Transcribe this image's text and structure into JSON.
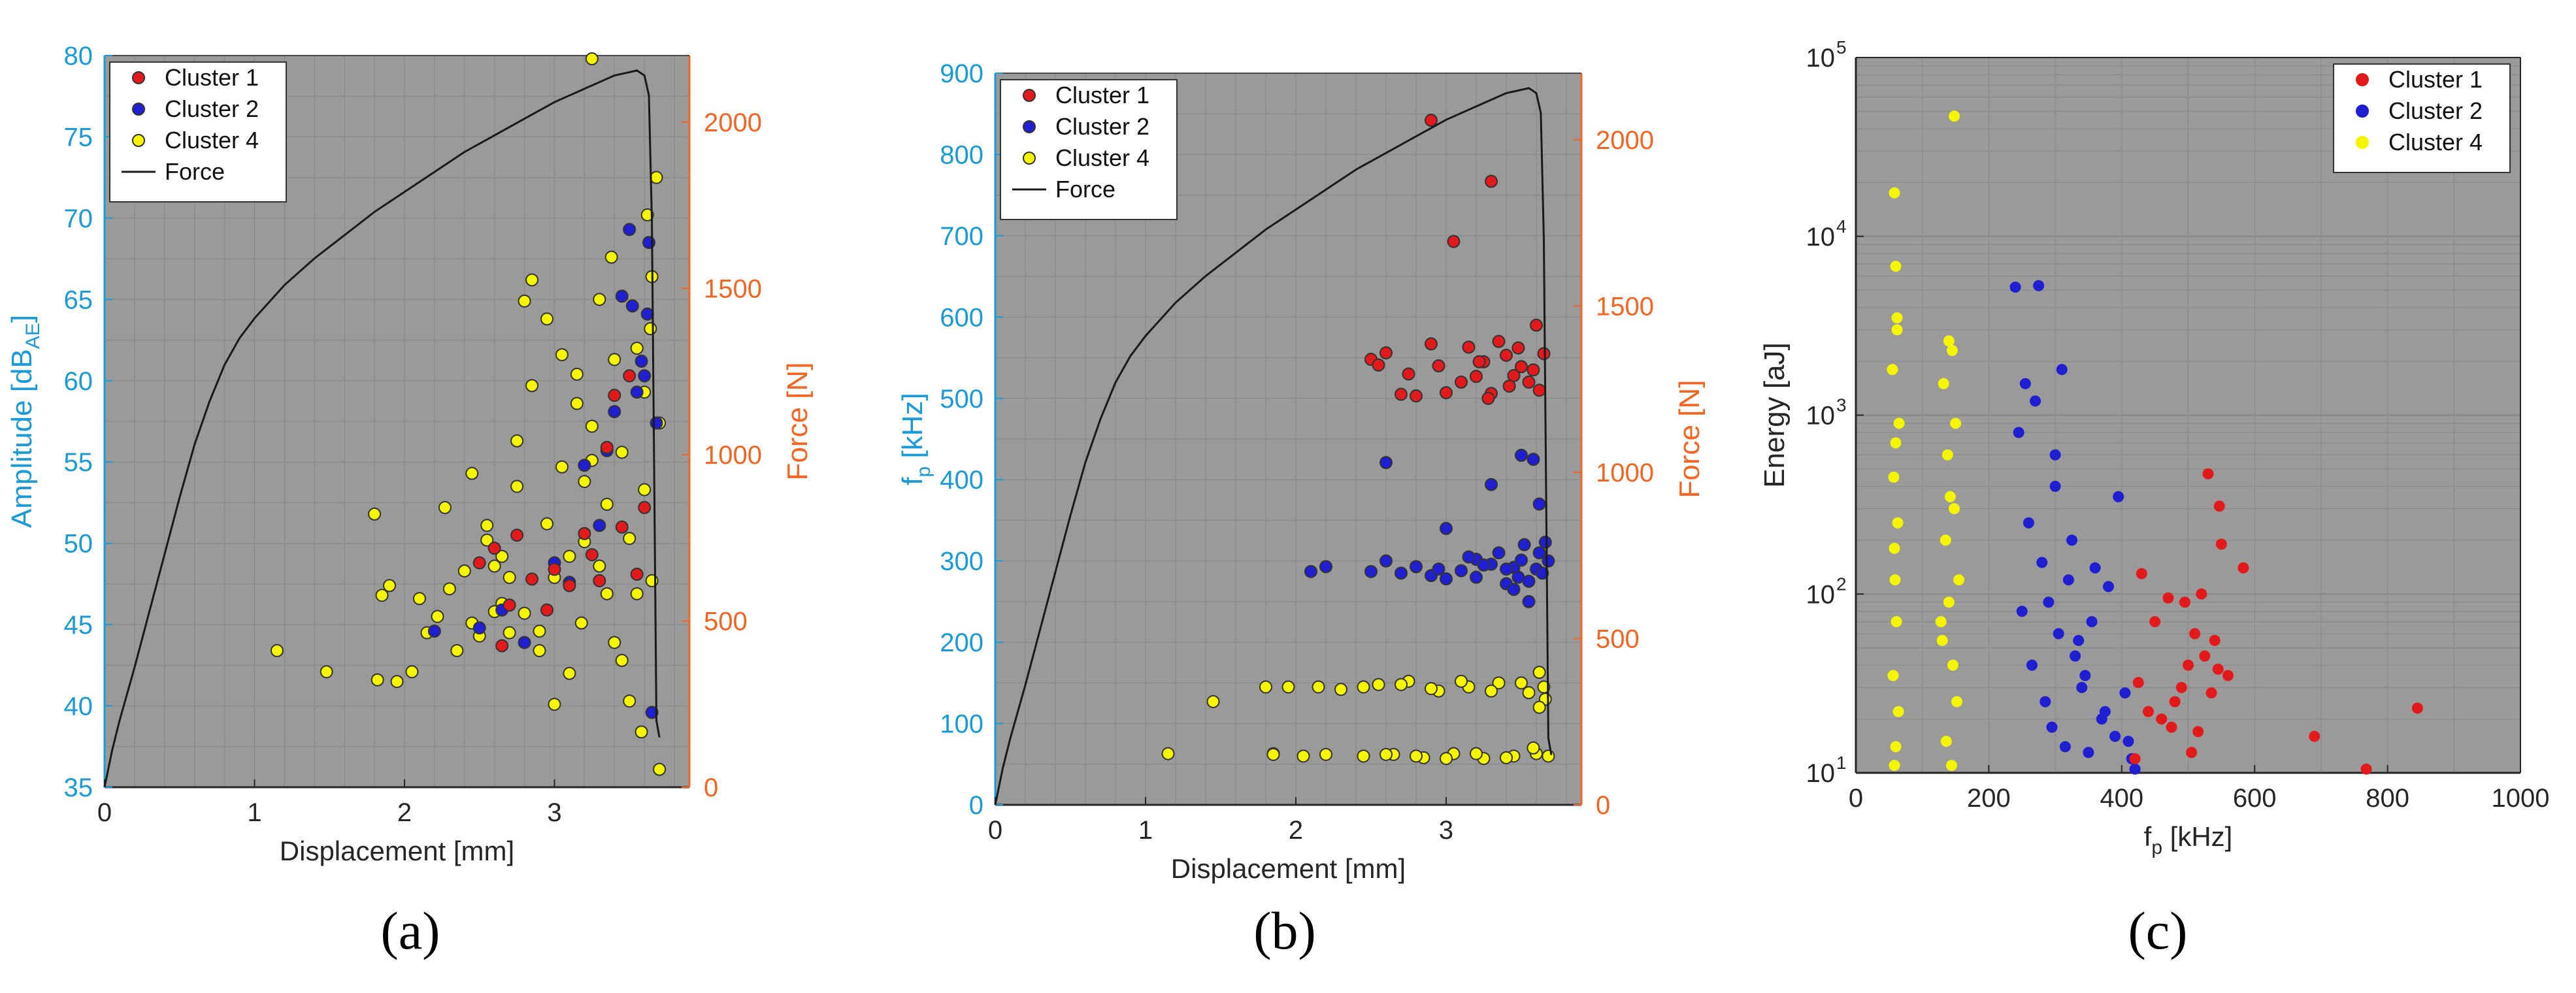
{
  "figure": {
    "labels": [
      "(a)",
      "(b)",
      "(c)"
    ]
  },
  "chart_data": [
    {
      "id": "a",
      "type": "scatter",
      "title": "",
      "xlabel": "Displacement [mm]",
      "ylabel": "Amplitude [dB_AE]",
      "ylabel_main": "Amplitude [dB",
      "ylabel_sub": "AE",
      "ylabel_end": "]",
      "y2label": "Force [N]",
      "xlim": [
        0,
        3.9
      ],
      "ylim": [
        35,
        80
      ],
      "y2lim": [
        0,
        2200
      ],
      "xticks": [
        "0",
        "1",
        "2",
        "3"
      ],
      "xtick_values": [
        0,
        1,
        2,
        3
      ],
      "yticks": [
        "35",
        "40",
        "45",
        "50",
        "55",
        "60",
        "65",
        "70",
        "75",
        "80"
      ],
      "ytick_values": [
        35,
        40,
        45,
        50,
        55,
        60,
        65,
        70,
        75,
        80
      ],
      "y2ticks": [
        "0",
        "500",
        "1000",
        "1500",
        "2000"
      ],
      "y2tick_values": [
        0,
        500,
        1000,
        1500,
        2000
      ],
      "grid": true,
      "legend_position": "top-left",
      "legend": [
        "Cluster 1",
        "Cluster 2",
        "Cluster 4",
        "Force"
      ],
      "force_curve": {
        "name": "Force",
        "x": [
          0,
          0.05,
          0.1,
          0.2,
          0.3,
          0.4,
          0.5,
          0.6,
          0.7,
          0.8,
          0.9,
          1.0,
          1.2,
          1.4,
          1.6,
          1.8,
          2.0,
          2.2,
          2.4,
          2.6,
          2.8,
          3.0,
          3.2,
          3.4,
          3.5,
          3.55,
          3.6,
          3.63,
          3.65,
          3.67,
          3.68,
          3.7
        ],
        "y": [
          0,
          110,
          200,
          360,
          530,
          700,
          870,
          1030,
          1160,
          1270,
          1350,
          1410,
          1510,
          1590,
          1660,
          1730,
          1790,
          1850,
          1910,
          1960,
          2010,
          2060,
          2100,
          2140,
          2150,
          2155,
          2140,
          2080,
          1700,
          700,
          200,
          150
        ]
      },
      "series": [
        {
          "name": "Cluster 1",
          "color": "#e31a1c",
          "x": [
            2.5,
            2.6,
            2.7,
            2.75,
            2.85,
            3.0,
            3.1,
            3.2,
            3.3,
            3.35,
            3.4,
            3.45,
            3.5,
            3.55,
            3.6,
            2.65,
            2.95,
            3.25
          ],
          "y": [
            48.8,
            49.7,
            46.2,
            50.5,
            47.8,
            48.4,
            47.4,
            50.6,
            47.7,
            55.9,
            59.1,
            51.0,
            60.3,
            48.1,
            52.2,
            43.7,
            45.9,
            49.3
          ]
        },
        {
          "name": "Cluster 2",
          "color": "#1f1fd1",
          "x": [
            2.2,
            2.5,
            2.65,
            2.8,
            3.0,
            3.1,
            3.2,
            3.3,
            3.35,
            3.4,
            3.45,
            3.5,
            3.52,
            3.55,
            3.58,
            3.6,
            3.62,
            3.63,
            3.65,
            3.68
          ],
          "y": [
            44.6,
            44.8,
            45.9,
            43.9,
            48.8,
            47.6,
            54.8,
            51.1,
            55.7,
            58.1,
            65.2,
            69.3,
            64.6,
            59.3,
            61.2,
            60.3,
            64.1,
            68.5,
            39.6,
            57.4
          ]
        },
        {
          "name": "Cluster 4",
          "color": "#f5f500",
          "x": [
            1.15,
            1.48,
            1.8,
            1.82,
            1.85,
            1.9,
            1.95,
            2.05,
            2.1,
            2.15,
            2.22,
            2.27,
            2.3,
            2.35,
            2.4,
            2.45,
            2.5,
            2.55,
            2.6,
            2.65,
            2.7,
            2.75,
            2.8,
            2.85,
            2.9,
            2.95,
            3.0,
            3.05,
            3.1,
            3.15,
            3.2,
            3.25,
            3.3,
            3.35,
            3.4,
            3.45,
            3.5,
            3.55,
            3.6,
            3.65,
            3.7,
            2.55,
            2.75,
            2.95,
            3.15,
            3.35,
            3.55,
            2.45,
            2.65,
            2.85,
            3.05,
            3.25,
            3.45,
            3.65,
            2.6,
            2.8,
            3.0,
            3.2,
            3.4,
            3.6,
            3.25,
            3.68,
            3.62,
            3.7,
            3.3,
            2.7,
            2.9,
            3.1,
            3.5,
            3.58,
            3.64,
            3.38,
            3.18
          ],
          "y": [
            43.4,
            42.1,
            51.8,
            41.6,
            46.8,
            47.4,
            41.5,
            42.1,
            46.6,
            44.5,
            45.5,
            52.2,
            47.2,
            43.4,
            48.3,
            45.1,
            44.3,
            50.2,
            48.6,
            46.3,
            47.9,
            53.5,
            45.7,
            66.2,
            44.6,
            51.2,
            47.9,
            54.7,
            49.2,
            60.4,
            50.1,
            57.2,
            48.6,
            52.4,
            43.9,
            55.6,
            50.3,
            46.9,
            53.3,
            47.7,
            57.4,
            51.1,
            56.3,
            63.8,
            58.6,
            46.9,
            62.0,
            54.3,
            49.2,
            59.7,
            61.6,
            55.1,
            42.8,
            66.4,
            45.8,
            64.9,
            40.1,
            53.8,
            61.3,
            59.3,
            79.8,
            72.5,
            70.2,
            36.1,
            65.0,
            44.5,
            43.4,
            42.0,
            40.3,
            38.4,
            63.2,
            67.6,
            45.1
          ]
        }
      ]
    },
    {
      "id": "b",
      "type": "scatter",
      "title": "",
      "xlabel": "Displacement [mm]",
      "ylabel": "f_p [kHz]",
      "ylabel_main": "f",
      "ylabel_sub": "p",
      "ylabel_end": " [kHz]",
      "y2label": "Force [N]",
      "xlim": [
        0,
        3.9
      ],
      "ylim": [
        0,
        900
      ],
      "y2lim": [
        0,
        2200
      ],
      "xticks": [
        "0",
        "1",
        "2",
        "3"
      ],
      "xtick_values": [
        0,
        1,
        2,
        3
      ],
      "yticks": [
        "0",
        "100",
        "200",
        "300",
        "400",
        "500",
        "600",
        "700",
        "800",
        "900"
      ],
      "ytick_values": [
        0,
        100,
        200,
        300,
        400,
        500,
        600,
        700,
        800,
        900
      ],
      "y2ticks": [
        "0",
        "500",
        "1000",
        "1500",
        "2000"
      ],
      "y2tick_values": [
        0,
        500,
        1000,
        1500,
        2000
      ],
      "grid": true,
      "legend_position": "top-left",
      "legend": [
        "Cluster 1",
        "Cluster 2",
        "Cluster 4",
        "Force"
      ],
      "force_curve": {
        "name": "Force",
        "x": [
          0,
          0.05,
          0.1,
          0.2,
          0.3,
          0.4,
          0.5,
          0.6,
          0.7,
          0.8,
          0.9,
          1.0,
          1.2,
          1.4,
          1.6,
          1.8,
          2.0,
          2.2,
          2.4,
          2.6,
          2.8,
          3.0,
          3.2,
          3.4,
          3.5,
          3.55,
          3.6,
          3.63,
          3.65,
          3.67,
          3.68,
          3.7
        ],
        "y": [
          0,
          110,
          200,
          360,
          530,
          700,
          870,
          1030,
          1160,
          1270,
          1350,
          1410,
          1510,
          1590,
          1660,
          1730,
          1790,
          1850,
          1910,
          1960,
          2010,
          2060,
          2100,
          2140,
          2150,
          2155,
          2140,
          2080,
          1700,
          700,
          200,
          150
        ]
      },
      "series": [
        {
          "name": "Cluster 1",
          "color": "#e31a1c",
          "x": [
            2.9,
            3.3,
            3.05,
            2.5,
            2.55,
            2.6,
            2.7,
            2.8,
            2.9,
            3.0,
            3.1,
            3.15,
            3.2,
            3.25,
            3.3,
            3.35,
            3.4,
            3.45,
            3.5,
            3.55,
            3.6,
            3.62,
            3.65,
            2.75,
            2.95,
            3.22,
            3.42,
            3.58,
            3.28,
            3.48
          ],
          "y": [
            842,
            767,
            693,
            548,
            541,
            556,
            505,
            503,
            567,
            507,
            520,
            563,
            527,
            545,
            506,
            570,
            553,
            528,
            539,
            520,
            590,
            510,
            555,
            530,
            540,
            545,
            515,
            535,
            500,
            562
          ]
        },
        {
          "name": "Cluster 2",
          "color": "#1f1fd1",
          "x": [
            2.1,
            2.2,
            2.5,
            2.6,
            2.7,
            2.8,
            2.9,
            3.0,
            3.1,
            3.2,
            3.3,
            3.35,
            3.4,
            3.45,
            3.5,
            3.55,
            3.6,
            3.62,
            3.64,
            3.66,
            3.68,
            2.6,
            3.0,
            3.3,
            3.5,
            3.58,
            3.62,
            3.4,
            3.2,
            3.45,
            3.55,
            2.95,
            3.15,
            3.52,
            3.48,
            3.25
          ],
          "y": [
            287,
            293,
            287,
            300,
            285,
            293,
            282,
            278,
            288,
            302,
            296,
            310,
            272,
            292,
            301,
            275,
            290,
            310,
            285,
            323,
            300,
            421,
            340,
            394,
            430,
            425,
            370,
            290,
            280,
            265,
            250,
            290,
            305,
            320,
            280,
            295
          ]
        },
        {
          "name": "Cluster 4",
          "color": "#f5f500",
          "x": [
            1.15,
            1.45,
            1.8,
            1.85,
            1.95,
            2.05,
            2.15,
            2.3,
            2.45,
            2.55,
            2.65,
            2.75,
            2.85,
            2.95,
            3.05,
            3.15,
            3.25,
            3.35,
            3.45,
            3.55,
            3.62,
            3.66,
            1.85,
            2.2,
            2.45,
            2.6,
            2.7,
            2.8,
            2.9,
            3.0,
            3.1,
            3.2,
            3.3,
            3.4,
            3.5,
            3.6,
            3.65,
            3.68,
            3.62,
            3.58
          ],
          "y": [
            63,
            127,
            145,
            63,
            145,
            60,
            145,
            142,
            60,
            148,
            62,
            152,
            58,
            140,
            63,
            145,
            57,
            150,
            60,
            138,
            163,
            130,
            62,
            62,
            145,
            62,
            148,
            60,
            143,
            57,
            152,
            63,
            140,
            58,
            150,
            63,
            145,
            60,
            120,
            70
          ]
        }
      ]
    },
    {
      "id": "c",
      "type": "scatter",
      "title": "",
      "xlabel": "f_p [kHz]",
      "xlabel_main": "f",
      "xlabel_sub": "p",
      "xlabel_end": " [kHz]",
      "ylabel": "Energy [aJ]",
      "xlim": [
        0,
        1000
      ],
      "ylim": [
        10,
        100000
      ],
      "yscale": "log",
      "xticks": [
        "0",
        "200",
        "400",
        "600",
        "800",
        "1000"
      ],
      "xtick_values": [
        0,
        200,
        400,
        600,
        800,
        1000
      ],
      "yticks": [
        "10",
        "10",
        "10",
        "10",
        "10"
      ],
      "ytick_exponents": [
        "1",
        "2",
        "3",
        "4",
        "5"
      ],
      "ytick_values": [
        10,
        100,
        1000,
        10000,
        100000
      ],
      "grid": true,
      "legend_position": "top-right",
      "legend": [
        "Cluster 1",
        "Cluster 2",
        "Cluster 4"
      ],
      "series": [
        {
          "name": "Cluster 1",
          "color": "#e31a1c",
          "x": [
            845,
            768,
            690,
            583,
            550,
            547,
            530,
            520,
            510,
            500,
            490,
            480,
            470,
            460,
            450,
            430,
            425,
            420,
            440,
            515,
            525,
            535,
            540,
            545,
            560,
            505,
            495,
            475
          ],
          "y": [
            23,
            10.5,
            16,
            140,
            190,
            310,
            470,
            100,
            60,
            40,
            30,
            25,
            95,
            20,
            70,
            130,
            32,
            12,
            22,
            17,
            45,
            28,
            55,
            38,
            35,
            13,
            90,
            18
          ]
        },
        {
          "name": "Cluster 2",
          "color": "#1f1fd1",
          "x": [
            240,
            275,
            245,
            310,
            300,
            260,
            280,
            290,
            305,
            320,
            330,
            340,
            355,
            370,
            380,
            395,
            410,
            420,
            250,
            265,
            285,
            295,
            315,
            335,
            345,
            360,
            375,
            390,
            405,
            415,
            255,
            270,
            300,
            325,
            350
          ],
          "y": [
            5200,
            5300,
            800,
            1800,
            600,
            250,
            150,
            90,
            60,
            120,
            45,
            30,
            70,
            20,
            110,
            350,
            15,
            10.5,
            80,
            40,
            25,
            18,
            14,
            55,
            35,
            140,
            22,
            16,
            28,
            12,
            1500,
            1200,
            400,
            200,
            13
          ]
        },
        {
          "name": "Cluster 4",
          "color": "#f5f500",
          "x": [
            58,
            60,
            62,
            55,
            65,
            57,
            63,
            59,
            61,
            56,
            64,
            60,
            58,
            62,
            148,
            140,
            145,
            132,
            150,
            138,
            142,
            135,
            155,
            128,
            146,
            152,
            136,
            144,
            130,
            148,
            60,
            58,
            140
          ],
          "y": [
            17500,
            6800,
            3500,
            1800,
            900,
            450,
            250,
            120,
            70,
            35,
            22,
            14,
            11,
            3000,
            47000,
            2600,
            2300,
            1500,
            900,
            600,
            350,
            200,
            120,
            70,
            40,
            25,
            15,
            11,
            55,
            300,
            700,
            180,
            90
          ]
        }
      ]
    }
  ]
}
